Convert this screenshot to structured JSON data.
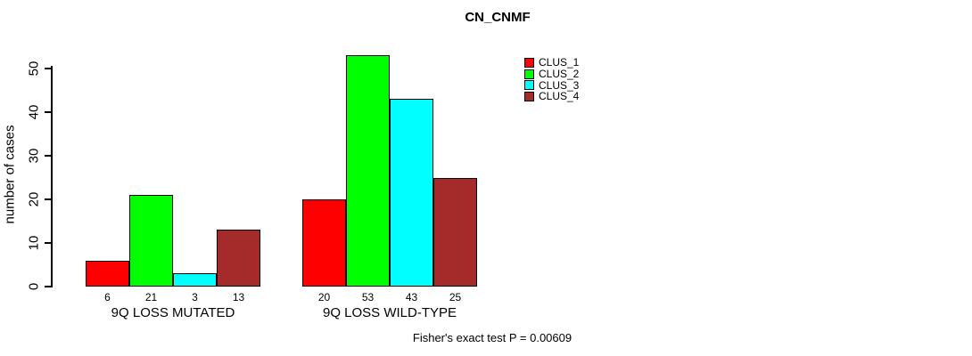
{
  "chart_data": {
    "type": "bar",
    "title": "CN_CNMF",
    "ylabel": "number of cases",
    "xlabel": "",
    "categories": [
      "9Q LOSS MUTATED",
      "9Q LOSS WILD-TYPE"
    ],
    "series": [
      {
        "name": "CLUS_1",
        "color": "#FF0000",
        "values": [
          6,
          20
        ]
      },
      {
        "name": "CLUS_2",
        "color": "#00FF00",
        "values": [
          21,
          53
        ]
      },
      {
        "name": "CLUS_3",
        "color": "#00FFFF",
        "values": [
          3,
          43
        ]
      },
      {
        "name": "CLUS_4",
        "color": "#A52A2A",
        "values": [
          13,
          25
        ]
      }
    ],
    "yticks": [
      0,
      10,
      20,
      30,
      40,
      50
    ],
    "ylim": [
      0,
      50
    ],
    "grid": false,
    "bar_value_labels": true,
    "legend_position": "top-right",
    "legend_entries": [
      "CLUS_1",
      "CLUS_2",
      "CLUS_3",
      "CLUS_4"
    ],
    "annotation": "Fisher's exact test P = 0.00609",
    "bar_border_color": "#000000",
    "background_color": "#FFFFFF"
  }
}
